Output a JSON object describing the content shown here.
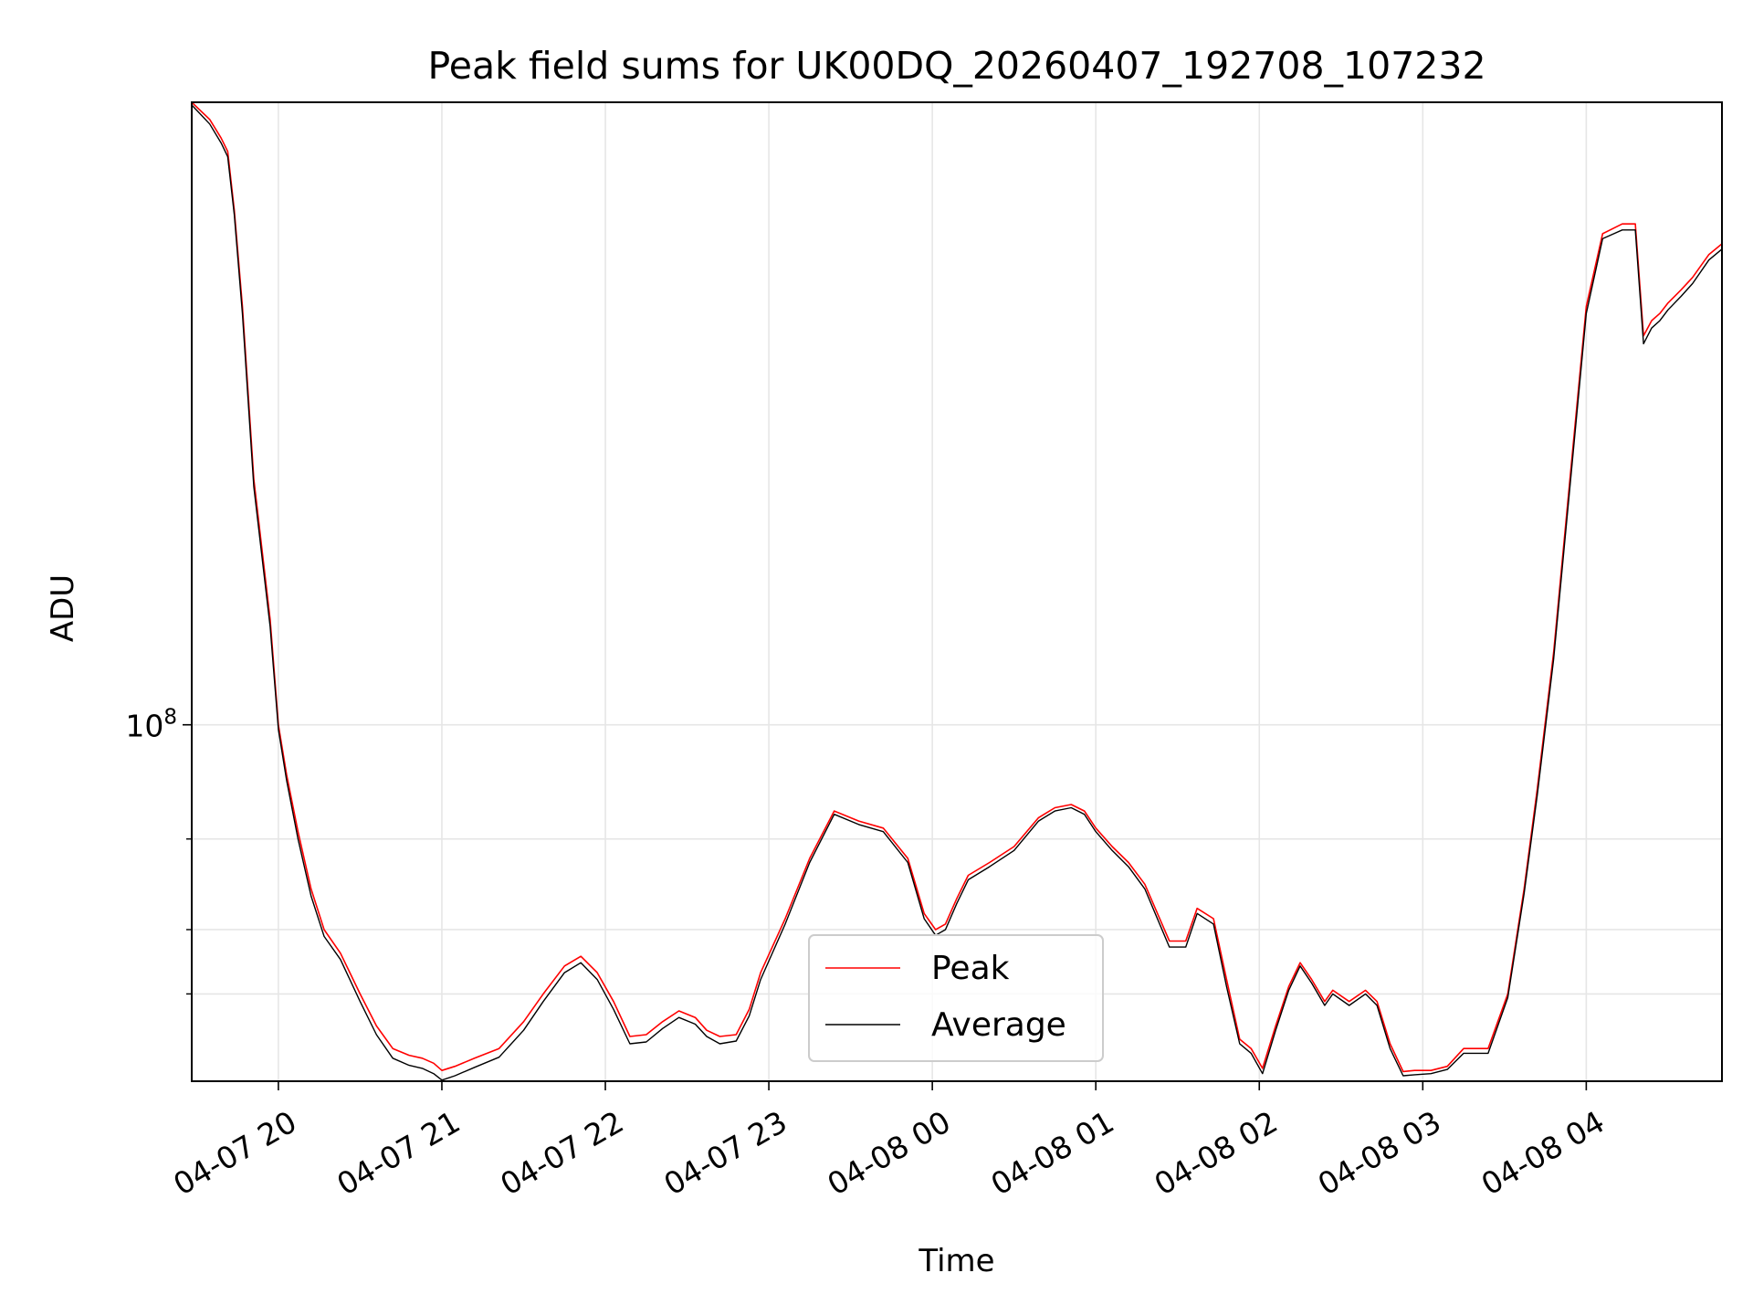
{
  "chart_data": {
    "type": "line",
    "title": "Peak field sums for UK00DQ_20260407_192708_107232",
    "xlabel": "Time",
    "ylabel": "ADU",
    "yscale": "log",
    "xlim": [
      -0.53,
      8.83
    ],
    "ylim": [
      20300000,
      1620000000
    ],
    "x_tick_values": [
      0,
      1,
      2,
      3,
      4,
      5,
      6,
      7,
      8
    ],
    "x_tick_labels": [
      "04-07 20",
      "04-07 21",
      "04-07 22",
      "04-07 23",
      "04-08 00",
      "04-08 01",
      "04-08 02",
      "04-08 03",
      "04-08 04"
    ],
    "y_major_ticks": [
      {
        "value": 100000000,
        "base": "10",
        "exp": "8"
      }
    ],
    "y_minor_ticks": [
      30000000,
      40000000,
      60000000
    ],
    "grid": true,
    "legend_position": "lower-center",
    "series": [
      {
        "name": "Peak",
        "color": "#ff0000",
        "x": [
          -0.53,
          -0.42,
          -0.35,
          -0.31,
          -0.27,
          -0.22,
          -0.15,
          -0.05,
          0.0,
          0.05,
          0.12,
          0.2,
          0.28,
          0.38,
          0.5,
          0.6,
          0.7,
          0.8,
          0.88,
          0.95,
          1.0,
          1.08,
          1.2,
          1.35,
          1.5,
          1.62,
          1.75,
          1.85,
          1.95,
          2.05,
          2.15,
          2.25,
          2.35,
          2.45,
          2.55,
          2.62,
          2.7,
          2.8,
          2.88,
          2.95,
          3.1,
          3.25,
          3.4,
          3.55,
          3.7,
          3.85,
          3.95,
          4.02,
          4.08,
          4.15,
          4.22,
          4.35,
          4.5,
          4.65,
          4.75,
          4.85,
          4.93,
          5.0,
          5.1,
          5.2,
          5.3,
          5.45,
          5.55,
          5.62,
          5.72,
          5.8,
          5.88,
          5.95,
          6.02,
          6.1,
          6.18,
          6.25,
          6.32,
          6.4,
          6.45,
          6.55,
          6.65,
          6.72,
          6.8,
          6.88,
          6.95,
          7.05,
          7.15,
          7.25,
          7.4,
          7.52,
          7.62,
          7.7,
          7.8,
          7.9,
          8.0,
          8.1,
          8.22,
          8.3,
          8.35,
          8.4,
          8.45,
          8.5,
          8.58,
          8.65,
          8.75,
          8.83
        ],
        "values": [
          1620000000,
          1500000000,
          1380000000,
          1300000000,
          1000000000,
          650000000,
          300000000,
          160000000,
          100000000,
          80000000,
          62000000,
          48000000,
          40000000,
          36000000,
          30000000,
          26000000,
          23500000,
          22800000,
          22500000,
          22000000,
          21300000,
          21700000,
          22500000,
          23500000,
          26500000,
          30000000,
          34000000,
          35500000,
          33000000,
          29000000,
          24800000,
          25000000,
          26500000,
          27800000,
          27000000,
          25500000,
          24800000,
          25000000,
          28000000,
          33000000,
          42000000,
          55000000,
          68000000,
          65000000,
          63000000,
          55000000,
          43000000,
          40000000,
          41000000,
          46000000,
          51000000,
          54000000,
          58000000,
          66000000,
          69000000,
          70000000,
          68000000,
          63000000,
          58000000,
          54000000,
          49000000,
          38000000,
          38000000,
          44000000,
          42000000,
          32000000,
          24500000,
          23500000,
          21500000,
          26000000,
          31000000,
          34500000,
          32000000,
          29000000,
          30500000,
          29000000,
          30500000,
          29000000,
          24000000,
          21200000,
          21300000,
          21300000,
          21700000,
          23500000,
          23500000,
          30000000,
          48000000,
          75000000,
          138000000,
          300000000,
          650000000,
          900000000,
          940000000,
          940000000,
          570000000,
          610000000,
          630000000,
          660000000,
          700000000,
          740000000,
          820000000,
          860000000
        ]
      },
      {
        "name": "Average",
        "color": "#000000",
        "x": [
          -0.53,
          -0.42,
          -0.35,
          -0.31,
          -0.27,
          -0.22,
          -0.15,
          -0.05,
          0.0,
          0.05,
          0.12,
          0.2,
          0.28,
          0.38,
          0.5,
          0.6,
          0.7,
          0.8,
          0.88,
          0.95,
          1.0,
          1.08,
          1.2,
          1.35,
          1.5,
          1.62,
          1.75,
          1.85,
          1.95,
          2.05,
          2.15,
          2.25,
          2.35,
          2.45,
          2.55,
          2.62,
          2.7,
          2.8,
          2.88,
          2.95,
          3.1,
          3.25,
          3.4,
          3.55,
          3.7,
          3.85,
          3.95,
          4.02,
          4.08,
          4.15,
          4.22,
          4.35,
          4.5,
          4.65,
          4.75,
          4.85,
          4.93,
          5.0,
          5.1,
          5.2,
          5.3,
          5.45,
          5.55,
          5.62,
          5.72,
          5.8,
          5.88,
          5.95,
          6.02,
          6.1,
          6.18,
          6.25,
          6.32,
          6.4,
          6.45,
          6.55,
          6.65,
          6.72,
          6.8,
          6.88,
          6.95,
          7.05,
          7.15,
          7.25,
          7.4,
          7.52,
          7.62,
          7.7,
          7.8,
          7.9,
          8.0,
          8.1,
          8.22,
          8.3,
          8.35,
          8.4,
          8.45,
          8.5,
          8.58,
          8.65,
          8.75,
          8.83
        ],
        "values": [
          1600000000,
          1470000000,
          1350000000,
          1270000000,
          980000000,
          630000000,
          290000000,
          155000000,
          98000000,
          78000000,
          60000000,
          46500000,
          38800000,
          35000000,
          29000000,
          25000000,
          22500000,
          21800000,
          21500000,
          21000000,
          20400000,
          20800000,
          21600000,
          22600000,
          25500000,
          29000000,
          33000000,
          34500000,
          32000000,
          28000000,
          24000000,
          24200000,
          25700000,
          27000000,
          26200000,
          24800000,
          24000000,
          24300000,
          27200000,
          32000000,
          41000000,
          54000000,
          67000000,
          64000000,
          62000000,
          54000000,
          42000000,
          39000000,
          40000000,
          45000000,
          50000000,
          53000000,
          57000000,
          65000000,
          68000000,
          69000000,
          67000000,
          62000000,
          57000000,
          53000000,
          48000000,
          37000000,
          37000000,
          43000000,
          41000000,
          31000000,
          24000000,
          23000000,
          21000000,
          25500000,
          30500000,
          34000000,
          31500000,
          28500000,
          30000000,
          28500000,
          30000000,
          28500000,
          23500000,
          20800000,
          20900000,
          21000000,
          21400000,
          23000000,
          23000000,
          29500000,
          47000000,
          73000000,
          134000000,
          290000000,
          630000000,
          880000000,
          915000000,
          915000000,
          550000000,
          590000000,
          610000000,
          640000000,
          680000000,
          720000000,
          800000000,
          840000000
        ]
      }
    ]
  }
}
